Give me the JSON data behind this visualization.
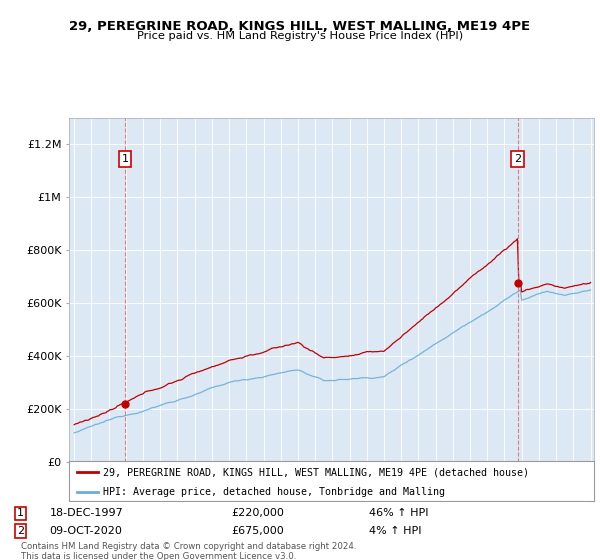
{
  "title1": "29, PEREGRINE ROAD, KINGS HILL, WEST MALLING, ME19 4PE",
  "title2": "Price paid vs. HM Land Registry's House Price Index (HPI)",
  "ylim": [
    0,
    1300000
  ],
  "yticks": [
    0,
    200000,
    400000,
    600000,
    800000,
    1000000,
    1200000
  ],
  "ytick_labels": [
    "£0",
    "£200K",
    "£400K",
    "£600K",
    "£800K",
    "£1M",
    "£1.2M"
  ],
  "x_start_year": 1995,
  "x_end_year": 2025,
  "sale1_date": "18-DEC-1997",
  "sale1_price": 220000,
  "sale1_label": "46% ↑ HPI",
  "sale1_x": 1997.96,
  "sale2_date": "09-OCT-2020",
  "sale2_price": 675000,
  "sale2_label": "4% ↑ HPI",
  "sale2_x": 2020.77,
  "hpi_color": "#6baed6",
  "price_color": "#c00000",
  "vline_color": "#e06060",
  "bg_fill": "#ddeeff",
  "background_color": "#ffffff",
  "legend_label1": "29, PEREGRINE ROAD, KINGS HILL, WEST MALLING, ME19 4PE (detached house)",
  "legend_label2": "HPI: Average price, detached house, Tonbridge and Malling",
  "footer": "Contains HM Land Registry data © Crown copyright and database right 2024.\nThis data is licensed under the Open Government Licence v3.0."
}
